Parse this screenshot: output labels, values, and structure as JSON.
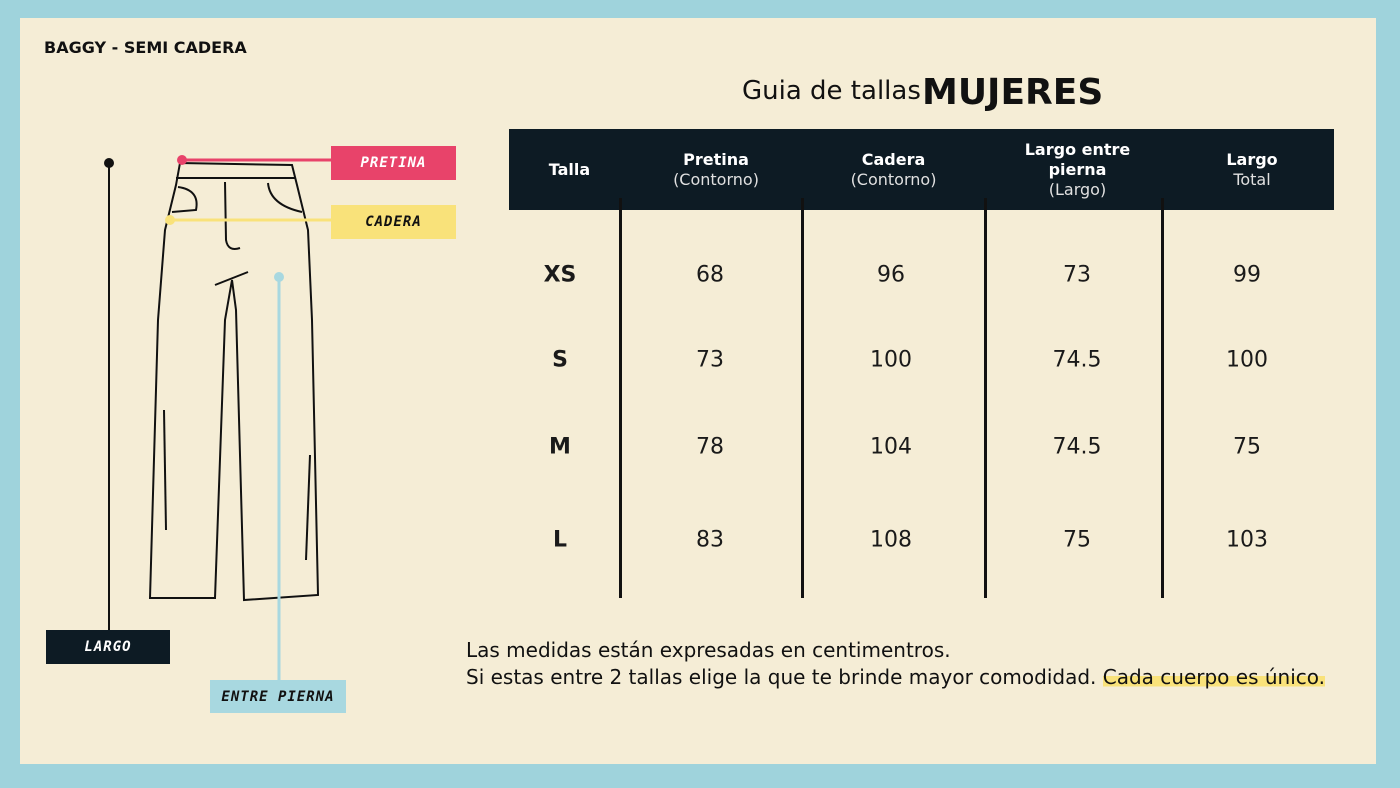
{
  "header": {
    "label": "BAGGY - SEMI CADERA",
    "title": "Guia de tallas",
    "title_emphasis": "MUJERES"
  },
  "diagram": {
    "pretina": "PRETINA",
    "cadera": "CADERA",
    "largo": "LARGO",
    "entre_pierna": "ENTRE PIERNA"
  },
  "table": {
    "columns": [
      {
        "main": "Talla"
      },
      {
        "main": "Pretina",
        "sub": "(Contorno)"
      },
      {
        "main": "Cadera",
        "sub": "(Contorno)"
      },
      {
        "main": "Largo entre pierna",
        "sub": "(Largo)"
      },
      {
        "main": "Largo",
        "sub": "Total"
      }
    ],
    "rows": [
      [
        "XS",
        68,
        96,
        73,
        99
      ],
      [
        "S",
        73,
        100,
        74.5,
        100
      ],
      [
        "M",
        78,
        104,
        74.5,
        75
      ],
      [
        "L",
        83,
        108,
        75,
        103
      ]
    ]
  },
  "notes": {
    "line1": "Las medidas están expresadas en centimentros.",
    "line2": "Si estas entre 2 tallas elige la que te brinde mayor comodidad.",
    "highlight": "Cada cuerpo es único."
  }
}
